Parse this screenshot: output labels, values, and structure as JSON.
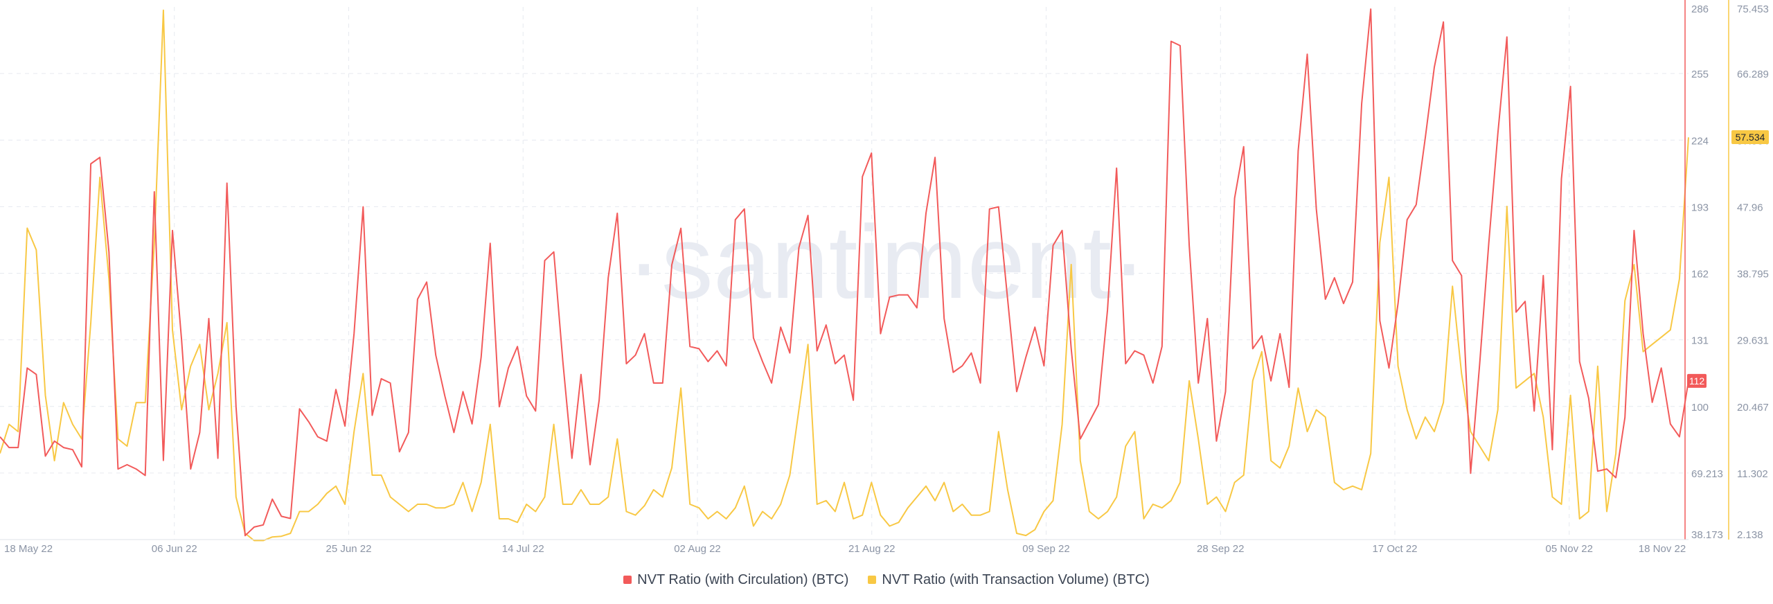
{
  "watermark": "·santiment·",
  "colors": {
    "series1": "#f25a5a",
    "series2": "#f8c844",
    "grid": "#e6e9ef",
    "axis_text": "#8b94a5"
  },
  "chart_data": {
    "type": "line",
    "x_tick_labels": [
      "18 May 22",
      "06 Jun 22",
      "25 Jun 22",
      "14 Jul 22",
      "02 Aug 22",
      "21 Aug 22",
      "09 Sep 22",
      "28 Sep 22",
      "17 Oct 22",
      "05 Nov 22",
      "18 Nov 22"
    ],
    "x_range": [
      "2022-05-18",
      "2022-11-18"
    ],
    "y_left": {
      "ticks": [
        "286",
        "255",
        "224",
        "193",
        "162",
        "131",
        "100",
        "69.213",
        "38.173"
      ],
      "range": [
        38.173,
        286
      ],
      "current_label": "112",
      "current_value": 112
    },
    "y_right": {
      "ticks": [
        "75.453",
        "66.289",
        "57.534",
        "47.96",
        "38.795",
        "29.631",
        "20.467",
        "11.302",
        "2.138"
      ],
      "range": [
        2.138,
        75.453
      ],
      "current_label": "57.534",
      "current_value": 57.534
    },
    "grid": true,
    "legend_placement": "bottom-center",
    "series": [
      {
        "name": "NVT Ratio (with Circulation) (BTC)",
        "axis": "left",
        "values": [
          86,
          81,
          81,
          118,
          115,
          77,
          84,
          81,
          80,
          72,
          213,
          216,
          172,
          71,
          73,
          71,
          68,
          200,
          75,
          182,
          131,
          71,
          88,
          141,
          76,
          204,
          100,
          40,
          44,
          45,
          57,
          49,
          48,
          99,
          93,
          86,
          84,
          108,
          91,
          134,
          193,
          96,
          113,
          111,
          79,
          88,
          150,
          158,
          124,
          105,
          88,
          107,
          92,
          123,
          176,
          100,
          118,
          128,
          105,
          98,
          168,
          172,
          121,
          76,
          115,
          73,
          103,
          160,
          190,
          120,
          124,
          134,
          111,
          111,
          166,
          183,
          128,
          127,
          121,
          126,
          119,
          187,
          192,
          132,
          121,
          111,
          137,
          125,
          174,
          189,
          126,
          138,
          120,
          124,
          103,
          207,
          218,
          134,
          151,
          152,
          152,
          146,
          190,
          216,
          141,
          116,
          119,
          125,
          111,
          192,
          193,
          150,
          107,
          123,
          137,
          119,
          175,
          182,
          127,
          85,
          93,
          101,
          145,
          211,
          120,
          126,
          124,
          111,
          128,
          270,
          268,
          175,
          111,
          141,
          84,
          107,
          197,
          221,
          127,
          133,
          112,
          134,
          109,
          219,
          264,
          192,
          150,
          160,
          148,
          158,
          241,
          285,
          140,
          118,
          148,
          187,
          194,
          225,
          258,
          279,
          168,
          161,
          69,
          120,
          176,
          227,
          272,
          144,
          149,
          98,
          161,
          80,
          206,
          249,
          121,
          104,
          70,
          71,
          67,
          95,
          182,
          134,
          102,
          118,
          92,
          86,
          112
        ],
        "current_value": 112
      },
      {
        "name": "NVT Ratio (with Transaction Volume) (BTC)",
        "axis": "right",
        "values": [
          14,
          18,
          17,
          45,
          42,
          22,
          13,
          21,
          18,
          16,
          32,
          52,
          38,
          16,
          15,
          21,
          21,
          43,
          75,
          31,
          20,
          26,
          29,
          20,
          25,
          32,
          8,
          3,
          2,
          2,
          2.5,
          2.6,
          3,
          6,
          6,
          7,
          8.5,
          9.5,
          7,
          17,
          25,
          11,
          11,
          8,
          7,
          6,
          7,
          7,
          6.5,
          6.5,
          7,
          10,
          6,
          10,
          18,
          5,
          5,
          4.5,
          7,
          6,
          8,
          18,
          7,
          7,
          9,
          7,
          7,
          8,
          16,
          6,
          5.5,
          6.8,
          9,
          8,
          12,
          23,
          7,
          6.5,
          5,
          6,
          5,
          6.5,
          9.5,
          4,
          6,
          5,
          7,
          11,
          20,
          29,
          7,
          7.5,
          6,
          10,
          5,
          5.5,
          10,
          5.5,
          4,
          4.5,
          6.5,
          8,
          9.5,
          7.5,
          10,
          6,
          7,
          5.5,
          5.5,
          6,
          17,
          9,
          3,
          2.7,
          3.5,
          6,
          7.5,
          18,
          40,
          13,
          6,
          5,
          6,
          8,
          15,
          17,
          5,
          7,
          6.5,
          7.5,
          10,
          24,
          16,
          7,
          8,
          6,
          10,
          11,
          24,
          28,
          13,
          12,
          15,
          23,
          17,
          20,
          19,
          10,
          9,
          9.5,
          9,
          14,
          43,
          52,
          26,
          20,
          16,
          19,
          17,
          21,
          37,
          25,
          17,
          15,
          13,
          20,
          48,
          23,
          24,
          25,
          19,
          8,
          7,
          22,
          5,
          6,
          26,
          6,
          14,
          35,
          40,
          28,
          29,
          30,
          31,
          38,
          57.5
        ],
        "current_value": 57.534
      }
    ]
  }
}
